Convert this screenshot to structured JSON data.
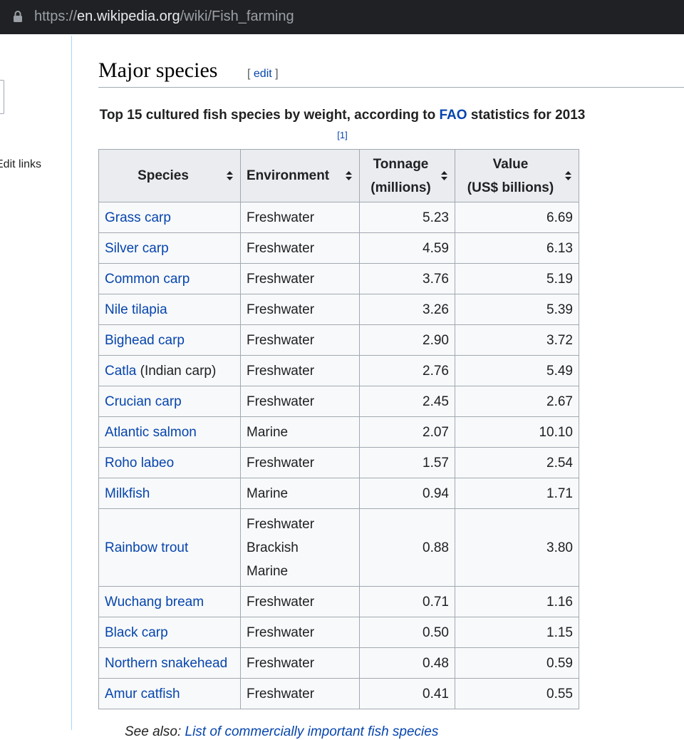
{
  "browser": {
    "url_scheme": "https://",
    "url_host": "en.wikipedia.org",
    "url_path": "/wiki/Fish_farming"
  },
  "sidebar": {
    "edit_links": "Edit links"
  },
  "section": {
    "title": "Major species",
    "edit_open": "[ ",
    "edit_label": "edit",
    "edit_close": " ]"
  },
  "table": {
    "caption_pre": "Top 15 cultured fish species by weight, according to ",
    "caption_link": "FAO",
    "caption_post": " statistics for 2013",
    "caption_ref": "[1]",
    "headers": {
      "species": "Species",
      "environment": "Environment",
      "tonnage_1": "Tonnage",
      "tonnage_2": "(millions)",
      "value_1": "Value",
      "value_2": "(US$ billions)"
    },
    "rows": [
      {
        "species": "Grass carp",
        "suffix": "",
        "env": [
          "Freshwater"
        ],
        "tonnage": "5.23",
        "value": "6.69"
      },
      {
        "species": "Silver carp",
        "suffix": "",
        "env": [
          "Freshwater"
        ],
        "tonnage": "4.59",
        "value": "6.13"
      },
      {
        "species": "Common carp",
        "suffix": "",
        "env": [
          "Freshwater"
        ],
        "tonnage": "3.76",
        "value": "5.19"
      },
      {
        "species": "Nile tilapia",
        "suffix": "",
        "env": [
          "Freshwater"
        ],
        "tonnage": "3.26",
        "value": "5.39"
      },
      {
        "species": "Bighead carp",
        "suffix": "",
        "env": [
          "Freshwater"
        ],
        "tonnage": "2.90",
        "value": "3.72"
      },
      {
        "species": "Catla",
        "suffix": " (Indian carp)",
        "env": [
          "Freshwater"
        ],
        "tonnage": "2.76",
        "value": "5.49"
      },
      {
        "species": "Crucian carp",
        "suffix": "",
        "env": [
          "Freshwater"
        ],
        "tonnage": "2.45",
        "value": "2.67"
      },
      {
        "species": "Atlantic salmon",
        "suffix": "",
        "env": [
          "Marine"
        ],
        "tonnage": "2.07",
        "value": "10.10"
      },
      {
        "species": "Roho labeo",
        "suffix": "",
        "env": [
          "Freshwater"
        ],
        "tonnage": "1.57",
        "value": "2.54"
      },
      {
        "species": "Milkfish",
        "suffix": "",
        "env": [
          "Marine"
        ],
        "tonnage": "0.94",
        "value": "1.71"
      },
      {
        "species": "Rainbow trout",
        "suffix": "",
        "env": [
          "Freshwater",
          "Brackish",
          "Marine"
        ],
        "tonnage": "0.88",
        "value": "3.80"
      },
      {
        "species": "Wuchang bream",
        "suffix": "",
        "env": [
          "Freshwater"
        ],
        "tonnage": "0.71",
        "value": "1.16"
      },
      {
        "species": "Black carp",
        "suffix": "",
        "env": [
          "Freshwater"
        ],
        "tonnage": "0.50",
        "value": "1.15"
      },
      {
        "species": "Northern snakehead",
        "suffix": "",
        "env": [
          "Freshwater"
        ],
        "tonnage": "0.48",
        "value": "0.59"
      },
      {
        "species": "Amur catfish",
        "suffix": "",
        "env": [
          "Freshwater"
        ],
        "tonnage": "0.41",
        "value": "0.55"
      }
    ]
  },
  "see_also": {
    "prefix": "See also: ",
    "link": "List of commercially important fish species"
  },
  "icons": {
    "lock": "lock-icon",
    "sort": "sort-icon"
  },
  "colors": {
    "link": "#0645ad",
    "header_bg": "#eaecf0",
    "border": "#a2a9b1"
  }
}
